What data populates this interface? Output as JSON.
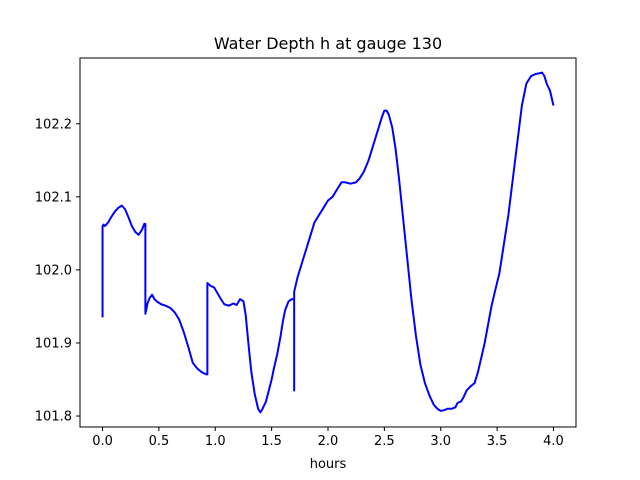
{
  "chart_data": {
    "type": "line",
    "title": "Water Depth h at gauge 130",
    "xlabel": "hours",
    "ylabel": "",
    "xlim": [
      -0.2,
      4.2
    ],
    "ylim": [
      101.785,
      102.29
    ],
    "xticks": [
      0.0,
      0.5,
      1.0,
      1.5,
      2.0,
      2.5,
      3.0,
      3.5,
      4.0
    ],
    "xtick_labels": [
      "0.0",
      "0.5",
      "1.0",
      "1.5",
      "2.0",
      "2.5",
      "3.0",
      "3.5",
      "4.0"
    ],
    "yticks": [
      101.8,
      101.9,
      102.0,
      102.1,
      102.2
    ],
    "ytick_labels": [
      "101.8",
      "101.9",
      "102.0",
      "102.1",
      "102.2"
    ],
    "grid": false,
    "series": [
      {
        "color": "#0000ff",
        "x": [
          0.0,
          0.0,
          0.01,
          0.02,
          0.05,
          0.08,
          0.11,
          0.14,
          0.17,
          0.2,
          0.23,
          0.26,
          0.29,
          0.32,
          0.35,
          0.37,
          0.38,
          0.38,
          0.4,
          0.42,
          0.44,
          0.46,
          0.48,
          0.52,
          0.56,
          0.6,
          0.64,
          0.68,
          0.72,
          0.76,
          0.8,
          0.84,
          0.88,
          0.92,
          0.93,
          0.93,
          0.96,
          0.99,
          1.02,
          1.05,
          1.08,
          1.12,
          1.16,
          1.19,
          1.22,
          1.25,
          1.27,
          1.3,
          1.32,
          1.35,
          1.38,
          1.4,
          1.42,
          1.45,
          1.48,
          1.5,
          1.52,
          1.55,
          1.58,
          1.6,
          1.62,
          1.65,
          1.68,
          1.7,
          1.7,
          1.7,
          1.73,
          1.76,
          1.8,
          1.84,
          1.88,
          1.92,
          1.96,
          2.0,
          2.04,
          2.08,
          2.1,
          2.12,
          2.15,
          2.2,
          2.25,
          2.28,
          2.32,
          2.36,
          2.4,
          2.43,
          2.46,
          2.48,
          2.5,
          2.52,
          2.54,
          2.57,
          2.6,
          2.63,
          2.66,
          2.7,
          2.74,
          2.78,
          2.82,
          2.86,
          2.9,
          2.94,
          2.97,
          3.0,
          3.03,
          3.06,
          3.1,
          3.13,
          3.15,
          3.18,
          3.2,
          3.23,
          3.26,
          3.3,
          3.33,
          3.36,
          3.39,
          3.42,
          3.45,
          3.48,
          3.52,
          3.56,
          3.6,
          3.64,
          3.68,
          3.72,
          3.76,
          3.8,
          3.84,
          3.87,
          3.9,
          3.92,
          3.94,
          3.97,
          4.0
        ],
        "y": [
          101.935,
          102.06,
          102.062,
          102.06,
          102.065,
          102.073,
          102.08,
          102.085,
          102.088,
          102.083,
          102.072,
          102.06,
          102.052,
          102.048,
          102.055,
          102.063,
          102.063,
          101.94,
          101.955,
          101.962,
          101.966,
          101.96,
          101.957,
          101.953,
          101.951,
          101.948,
          101.942,
          101.932,
          101.915,
          101.895,
          101.873,
          101.865,
          101.86,
          101.857,
          101.857,
          101.982,
          101.978,
          101.976,
          101.968,
          101.96,
          101.953,
          101.951,
          101.954,
          101.952,
          101.96,
          101.957,
          101.938,
          101.89,
          101.86,
          101.83,
          101.81,
          101.805,
          101.81,
          101.82,
          101.838,
          101.85,
          101.865,
          101.885,
          101.91,
          101.93,
          101.945,
          101.957,
          101.96,
          101.96,
          101.835,
          101.97,
          101.99,
          102.005,
          102.025,
          102.045,
          102.065,
          102.075,
          102.085,
          102.095,
          102.1,
          102.11,
          102.115,
          102.12,
          102.12,
          102.118,
          102.12,
          102.125,
          102.135,
          102.15,
          102.17,
          102.185,
          102.2,
          102.21,
          102.218,
          102.218,
          102.212,
          102.195,
          102.165,
          102.125,
          102.08,
          102.02,
          101.96,
          101.91,
          101.87,
          101.845,
          101.828,
          101.815,
          101.81,
          101.807,
          101.808,
          101.81,
          101.81,
          101.812,
          101.818,
          101.82,
          101.825,
          101.835,
          101.84,
          101.845,
          101.86,
          101.88,
          101.9,
          101.925,
          101.95,
          101.97,
          101.995,
          102.035,
          102.075,
          102.125,
          102.175,
          102.225,
          102.255,
          102.265,
          102.268,
          102.269,
          102.27,
          102.265,
          102.255,
          102.245,
          102.225
        ]
      }
    ]
  }
}
